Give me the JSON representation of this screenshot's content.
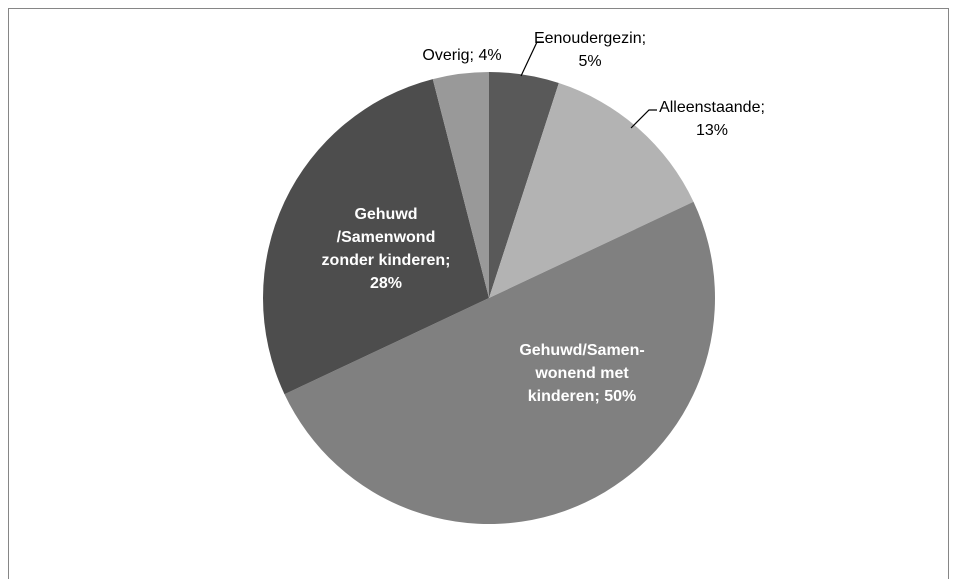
{
  "chart_data": {
    "type": "pie",
    "values": [
      5,
      13,
      50,
      28,
      4
    ],
    "value_labels": [
      "Eenoudergezin; 5%",
      "Alleenstaande; 13%",
      "Gehuwd/Samen-wonend met kinderen; 50%",
      "Gehuwd /Samenwond zonder kinderen; 28%",
      "Overig; 4%"
    ],
    "colors": [
      "#595959",
      "#b3b3b3",
      "#808080",
      "#4d4d4d",
      "#999999"
    ]
  }
}
